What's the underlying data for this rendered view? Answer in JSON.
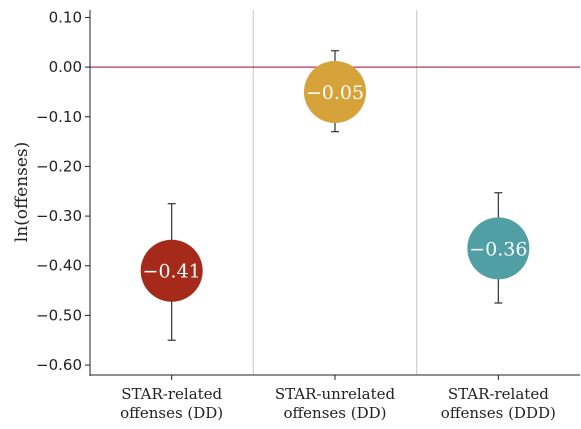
{
  "chart_data": {
    "type": "scatter",
    "title": "",
    "ylabel": "ln(offenses)",
    "xlabel": "",
    "ylim": [
      -0.62,
      0.115
    ],
    "yticks": [
      0.1,
      0.0,
      -0.1,
      -0.2,
      -0.3,
      -0.4,
      -0.5,
      -0.6
    ],
    "ytick_labels": [
      "0.10",
      "0.00",
      "−0.10",
      "−0.20",
      "−0.30",
      "−0.40",
      "−0.50",
      "−0.60"
    ],
    "reference_line": {
      "y": 0.0,
      "color": "#c0334d"
    },
    "grid": false,
    "categories": [
      {
        "line1": "STAR-related",
        "line2": "offenses (DD)"
      },
      {
        "line1": "STAR-unrelated",
        "line2": "offenses (DD)"
      },
      {
        "line1": "STAR-related",
        "line2": "offenses (DDD)"
      }
    ],
    "points": [
      {
        "value": -0.41,
        "label": "−0.41",
        "ci_low": -0.55,
        "ci_high": -0.275,
        "color": "#a52a1a"
      },
      {
        "value": -0.05,
        "label": "−0.05",
        "ci_low": -0.13,
        "ci_high": 0.033,
        "color": "#d6a23a"
      },
      {
        "value": -0.365,
        "label": "−0.36",
        "ci_low": -0.475,
        "ci_high": -0.253,
        "color": "#4f9fa5"
      }
    ]
  }
}
